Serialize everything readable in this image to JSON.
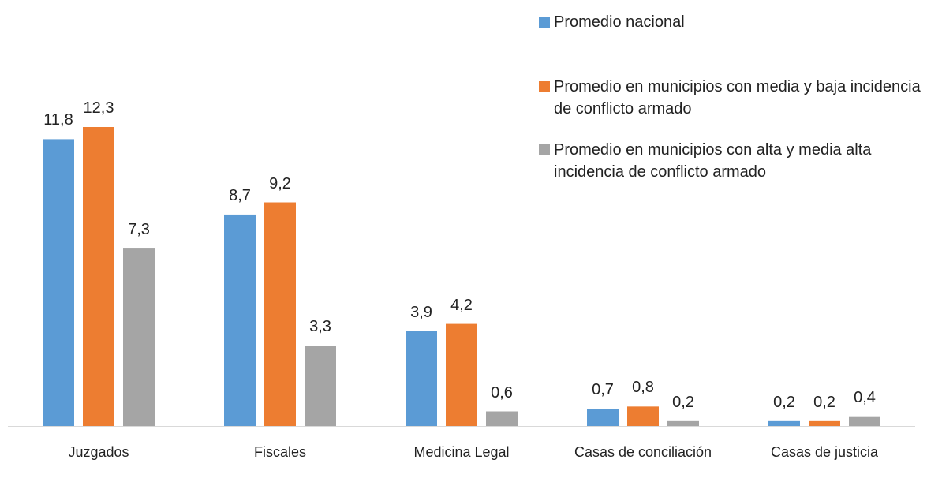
{
  "chart_data": {
    "type": "bar",
    "categories": [
      "Juzgados",
      "Fiscales",
      "Medicina Legal",
      "Casas de conciliación",
      "Casas de justicia"
    ],
    "series": [
      {
        "name": "Promedio nacional",
        "color": "#5b9bd5",
        "values": [
          11.8,
          8.7,
          3.9,
          0.7,
          0.2
        ],
        "value_labels": [
          "11,8",
          "8,7",
          "3,9",
          "0,7",
          "0,2"
        ]
      },
      {
        "name": "Promedio en municipios con media y baja incidencia de conflicto armado",
        "color": "#ed7d31",
        "values": [
          12.3,
          9.2,
          4.2,
          0.8,
          0.2
        ],
        "value_labels": [
          "12,3",
          "9,2",
          "4,2",
          "0,8",
          "0,2"
        ]
      },
      {
        "name": "Promedio en municipios con alta y media alta incidencia de conflicto armado",
        "color": "#a5a5a5",
        "values": [
          7.3,
          3.3,
          0.6,
          0.2,
          0.4
        ],
        "value_labels": [
          "7,3",
          "3,3",
          "0,6",
          "0,2",
          "0,4"
        ]
      }
    ],
    "legend": "top-right"
  }
}
